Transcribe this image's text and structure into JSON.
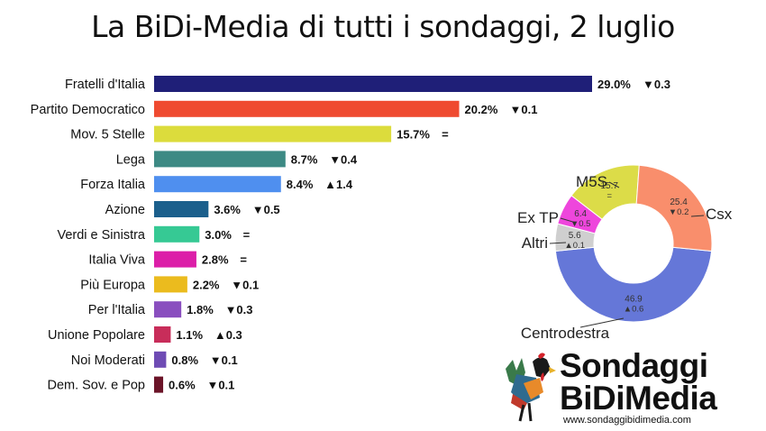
{
  "title": "La BiDi-Media di tutti i sondaggi, 2 luglio",
  "chart_data": [
    {
      "type": "bar",
      "orientation": "horizontal",
      "categories": [
        "Fratelli d'Italia",
        "Partito Democratico",
        "Mov. 5 Stelle",
        "Lega",
        "Forza Italia",
        "Azione",
        "Verdi e Sinistra",
        "Italia Viva",
        "Più Europa",
        "Per l'Italia",
        "Unione Popolare",
        "Noi Moderati",
        "Dem. Sov. e Pop"
      ],
      "values": [
        29.0,
        20.2,
        15.7,
        8.7,
        8.4,
        3.6,
        3.0,
        2.8,
        2.2,
        1.8,
        1.1,
        0.8,
        0.6
      ],
      "value_labels": [
        "29.0%",
        "20.2%",
        "15.7%",
        "8.7%",
        "8.4%",
        "3.6%",
        "3.0%",
        "2.8%",
        "2.2%",
        "1.8%",
        "1.1%",
        "0.8%",
        "0.6%"
      ],
      "changes": [
        "▼0.3",
        "▼0.1",
        "=",
        "▼0.4",
        "▲1.4",
        "▼0.5",
        "=",
        "=",
        "▼0.1",
        "▼0.3",
        "▲0.3",
        "▼0.1",
        "▼0.1"
      ],
      "colors": [
        "#1f1f78",
        "#ef4a30",
        "#dcdc3c",
        "#3d8a84",
        "#4f8fef",
        "#1b5f8c",
        "#36c994",
        "#dc1ea8",
        "#ebbb1e",
        "#8a4fbf",
        "#c82d5a",
        "#6e4bb4",
        "#6b1428"
      ]
    },
    {
      "type": "pie",
      "donut": true,
      "slices": [
        {
          "name": "Centrodestra",
          "value": 46.9,
          "value_label": "46.9",
          "change": "▲0.6",
          "color": "#6577d8"
        },
        {
          "name": "Altri",
          "value": 5.6,
          "value_label": "5.6",
          "change": "▲0.1",
          "color": "#cfcfcf"
        },
        {
          "name": "Ex TP",
          "value": 6.4,
          "value_label": "6.4",
          "change": "▼0.5",
          "color": "#ee46dc"
        },
        {
          "name": "M5S",
          "value": 15.7,
          "value_label": "15.7",
          "change": "=",
          "color": "#dcdc48"
        },
        {
          "name": "Csx",
          "value": 25.4,
          "value_label": "25.4",
          "change": "▼0.2",
          "color": "#f98e6c"
        }
      ]
    }
  ],
  "logo": {
    "line1": "Sondaggi",
    "line2": "BiDiMedia",
    "website": "www.sondaggibidimedia.com"
  }
}
